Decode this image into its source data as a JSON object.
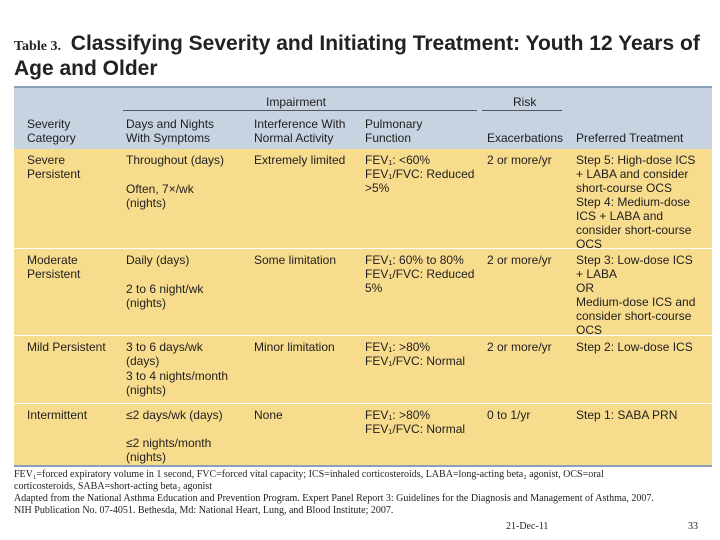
{
  "title": {
    "label": "Table 3.",
    "text": "Classifying Severity and Initiating Treatment: Youth 12 Years of Age and Older"
  },
  "header": {
    "impairment": "Impairment",
    "risk": "Risk",
    "columns": [
      "Severity\nCategory",
      "Days and Nights\nWith Symptoms",
      "Interference With\nNormal Activity",
      "Pulmonary\nFunction",
      "Exacerbations",
      "Preferred Treatment"
    ]
  },
  "rows": [
    {
      "category": "Severe\n   Persistent",
      "symptoms_1": "Throughout (days)",
      "symptoms_2": "Often, 7×/wk\n   (nights)",
      "interference": "Extremely limited",
      "pulmonary": "FEV₁: <60%\nFEV₁/FVC: Reduced\n   >5%",
      "exacerbations": "2 or more/yr",
      "treatment": "Step 5: High-dose ICS\n   + LABA and consider\n   short-course OCS\nStep 4: Medium-dose\n   ICS + LABA and\n   consider short-course\n   OCS"
    },
    {
      "category": "Moderate\n   Persistent",
      "symptoms_1": "Daily (days)",
      "symptoms_2": "2 to 6 night/wk\n   (nights)",
      "interference": "Some limitation",
      "pulmonary": "FEV₁: 60% to 80%\nFEV₁/FVC: Reduced\n   5%",
      "exacerbations": "2 or more/yr",
      "treatment": "Step 3: Low-dose ICS\n   + LABA\nOR\nMedium-dose ICS and\n   consider short-course\n   OCS"
    },
    {
      "category": "Mild Persistent",
      "symptoms_1": "3 to 6 days/wk\n   (days)",
      "symptoms_2": "3 to 4 nights/month\n   (nights)",
      "interference": "Minor limitation",
      "pulmonary": "FEV₁: >80%\nFEV₁/FVC: Normal",
      "exacerbations": "2 or more/yr",
      "treatment": "Step 2: Low-dose ICS"
    },
    {
      "category": "Intermittent",
      "symptoms_1": "≤2 days/wk (days)",
      "symptoms_2": "≤2 nights/month\n   (nights)",
      "interference": "None",
      "pulmonary": "FEV₁: >80%\nFEV₁/FVC: Normal",
      "exacerbations": "0 to 1/yr",
      "treatment": "Step 1: SABA PRN"
    }
  ],
  "footnote": {
    "line1": "FEV₁=forced expiratory volume in 1 second, FVC=forced vital capacity; ICS=inhaled corticosteroids, LABA=long-acting beta₂ agonist, OCS=oral",
    "line2": "corticosteroids, SABA=short-acting beta₂ agonist",
    "line3": "Adapted from the National Asthma Education and Prevention Program. Expert Panel Report 3: Guidelines for the Diagnosis and Management of Asthma, 2007.",
    "line4": "NIH Publication No. 07-4051. Bethesda, Md: National Heart, Lung, and Blood Institute; 2007."
  },
  "slide": {
    "date": "21-Dec-11",
    "number": "33"
  }
}
